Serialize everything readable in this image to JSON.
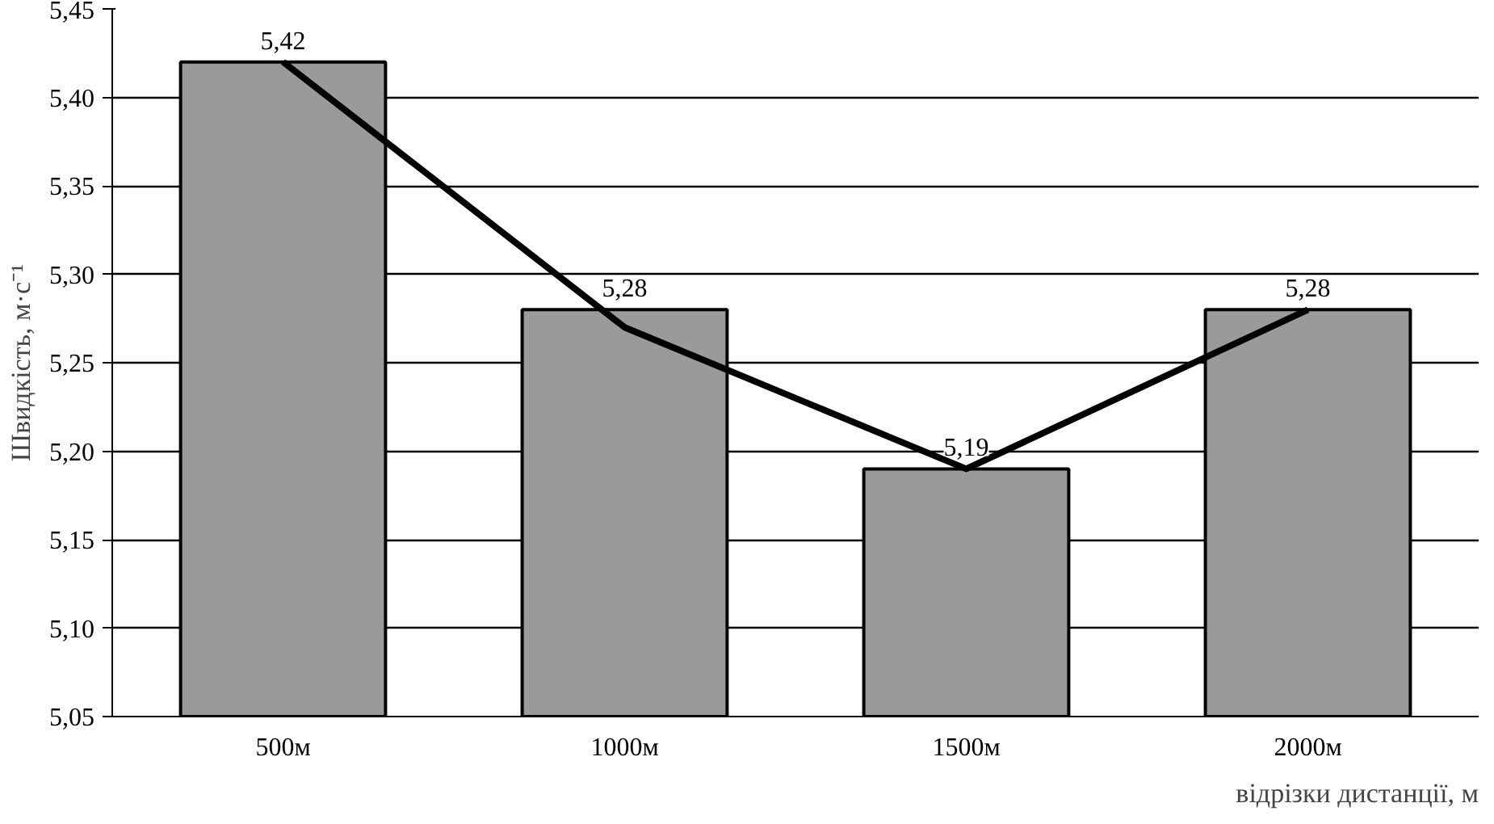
{
  "chart_data": {
    "type": "bar",
    "xlabel": "відрізки дистанції, м",
    "ylabel": "Швидкість, м·с⁻¹",
    "categories": [
      "500м",
      "1000м",
      "1500м",
      "2000м"
    ],
    "series": [
      {
        "color": "#9a9a9a",
        "values": [
          5.42,
          5.28,
          5.19,
          5.28
        ],
        "value_labels": [
          "5,42",
          "5,28",
          "5,19",
          "5,28"
        ]
      },
      {
        "type": "line",
        "color": "#000000",
        "values": [
          5.42,
          5.27,
          5.19,
          5.28
        ]
      }
    ],
    "ylim": [
      5.05,
      5.45
    ],
    "yticks": [
      {
        "value": 5.05,
        "label": "5,05"
      },
      {
        "value": 5.1,
        "label": "5,10"
      },
      {
        "value": 5.15,
        "label": "5,15"
      },
      {
        "value": 5.2,
        "label": "5,20"
      },
      {
        "value": 5.25,
        "label": "5,25"
      },
      {
        "value": 5.3,
        "label": "5,30"
      },
      {
        "value": 5.35,
        "label": "5,35"
      },
      {
        "value": 5.4,
        "label": "5,40"
      },
      {
        "value": 5.45,
        "label": "5,45"
      }
    ],
    "grid": "y"
  }
}
